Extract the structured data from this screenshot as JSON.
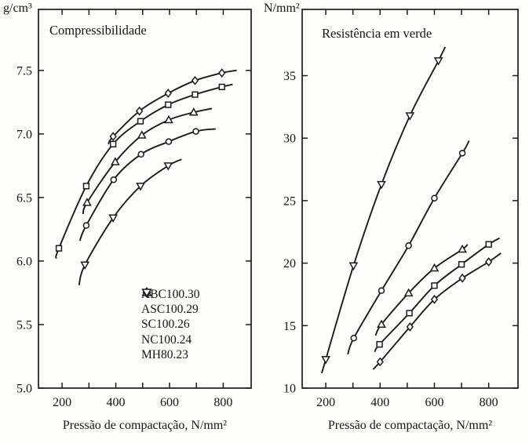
{
  "figure": {
    "background": "#fdfdfc",
    "ink": "#1c1c1c",
    "text_color": "#151515"
  },
  "chart_data": [
    {
      "type": "line",
      "title": "Compressibilidade",
      "y_unit": "g/cm³",
      "xlabel": "Pressão de compactação, N/mm²",
      "xlim": [
        112,
        904
      ],
      "ylim": [
        5.0,
        7.98
      ],
      "grid": false,
      "xticks_minor": [
        300,
        500,
        700
      ],
      "xticks": [
        {
          "v": 200,
          "label": "200"
        },
        {
          "v": 400,
          "label": "400"
        },
        {
          "v": 600,
          "label": "600"
        },
        {
          "v": 800,
          "label": "800"
        }
      ],
      "yticks": [
        {
          "v": 5.0,
          "label": "5.0"
        },
        {
          "v": 5.5,
          "label": "5.5"
        },
        {
          "v": 6.0,
          "label": "6.0"
        },
        {
          "v": 6.5,
          "label": "6.5"
        },
        {
          "v": 7.0,
          "label": "7.0"
        },
        {
          "v": 7.5,
          "label": "7.5"
        }
      ],
      "series": [
        {
          "name": "ABC100.30",
          "marker": "diamond",
          "lead": [
            372,
            6.92
          ],
          "points": [
            [
              390,
              6.98
            ],
            [
              488,
              7.18
            ],
            [
              595,
              7.32
            ],
            [
              695,
              7.42
            ],
            [
              795,
              7.48
            ]
          ],
          "tail": [
            850,
            7.5
          ]
        },
        {
          "name": "ASC100.29",
          "marker": "square",
          "lead": [
            178,
            6.02
          ],
          "points": [
            [
              188,
              6.1
            ],
            [
              290,
              6.59
            ],
            [
              390,
              6.92
            ],
            [
              492,
              7.1
            ],
            [
              595,
              7.23
            ],
            [
              695,
              7.31
            ],
            [
              795,
              7.37
            ]
          ],
          "tail": [
            835,
            7.39
          ]
        },
        {
          "name": "SC100.26",
          "marker": "triangle-up",
          "lead": [
            278,
            6.37
          ],
          "points": [
            [
              293,
              6.46
            ],
            [
              398,
              6.78
            ],
            [
              497,
              6.99
            ],
            [
              597,
              7.11
            ],
            [
              690,
              7.17
            ]
          ],
          "tail": [
            758,
            7.2
          ]
        },
        {
          "name": "NC100.24",
          "marker": "circle",
          "lead": [
            266,
            6.16
          ],
          "points": [
            [
              290,
              6.28
            ],
            [
              392,
              6.64
            ],
            [
              494,
              6.84
            ],
            [
              597,
              6.94
            ],
            [
              698,
              7.02
            ]
          ],
          "tail": [
            772,
            7.04
          ]
        },
        {
          "name": "MH80.23",
          "marker": "triangle-down",
          "lead": [
            263,
            5.81
          ],
          "points": [
            [
              285,
              5.97
            ],
            [
              390,
              6.34
            ],
            [
              492,
              6.59
            ],
            [
              595,
              6.75
            ]
          ],
          "tail": [
            645,
            6.8
          ]
        }
      ],
      "legend": [
        {
          "marker": "diamond",
          "label": "ABC100.30"
        },
        {
          "marker": "square",
          "label": "ASC100.29"
        },
        {
          "marker": "triangle-up",
          "label": "SC100.26"
        },
        {
          "marker": "circle",
          "label": "NC100.24"
        },
        {
          "marker": "triangle-down",
          "label": "MH80.23"
        }
      ],
      "legend_position": "lower-right-inside"
    },
    {
      "type": "line",
      "title": "Resistência em verde",
      "y_unit": "N/mm²",
      "xlabel": "Pressão de compactação, N/mm²",
      "xlim": [
        113,
        908
      ],
      "ylim": [
        10,
        40.3
      ],
      "grid": false,
      "xticks_minor": [
        300,
        500,
        700
      ],
      "xticks": [
        {
          "v": 200,
          "label": "200"
        },
        {
          "v": 400,
          "label": "400"
        },
        {
          "v": 600,
          "label": "600"
        },
        {
          "v": 800,
          "label": "800"
        }
      ],
      "yticks": [
        {
          "v": 10,
          "label": "10"
        },
        {
          "v": 15,
          "label": "15"
        },
        {
          "v": 20,
          "label": "20"
        },
        {
          "v": 25,
          "label": "25"
        },
        {
          "v": 30,
          "label": "30"
        },
        {
          "v": 35,
          "label": "35"
        }
      ],
      "series": [
        {
          "name": "ABC100.30",
          "marker": "diamond",
          "lead": [
            374,
            11.5
          ],
          "points": [
            [
              400,
              12.1
            ],
            [
              510,
              14.9
            ],
            [
              600,
              17.1
            ],
            [
              703,
              18.8
            ],
            [
              800,
              20.1
            ]
          ],
          "tail": [
            845,
            20.8
          ]
        },
        {
          "name": "ASC100.29",
          "marker": "square",
          "lead": [
            380,
            12.9
          ],
          "points": [
            [
              398,
              13.5
            ],
            [
              508,
              16.0
            ],
            [
              600,
              18.2
            ],
            [
              700,
              19.9
            ],
            [
              800,
              21.5
            ]
          ],
          "tail": [
            840,
            22.0
          ]
        },
        {
          "name": "SC100.26",
          "marker": "triangle-up",
          "lead": [
            383,
            14.2
          ],
          "points": [
            [
              405,
              15.1
            ],
            [
              505,
              17.6
            ],
            [
              600,
              19.6
            ],
            [
              703,
              21.1
            ]
          ],
          "tail": [
            722,
            21.5
          ]
        },
        {
          "name": "NC100.24",
          "marker": "circle",
          "lead": [
            281,
            12.7
          ],
          "points": [
            [
              303,
              14.0
            ],
            [
              405,
              17.8
            ],
            [
              505,
              21.4
            ],
            [
              600,
              25.2
            ],
            [
              703,
              28.8
            ]
          ],
          "tail": [
            728,
            29.8
          ]
        },
        {
          "name": "MH80.23",
          "marker": "triangle-down",
          "lead": [
            185,
            11.2
          ],
          "points": [
            [
              200,
              12.3
            ],
            [
              302,
              19.8
            ],
            [
              405,
              26.3
            ],
            [
              510,
              31.8
            ],
            [
              615,
              36.2
            ]
          ],
          "tail": [
            640,
            37.3
          ]
        }
      ]
    }
  ]
}
